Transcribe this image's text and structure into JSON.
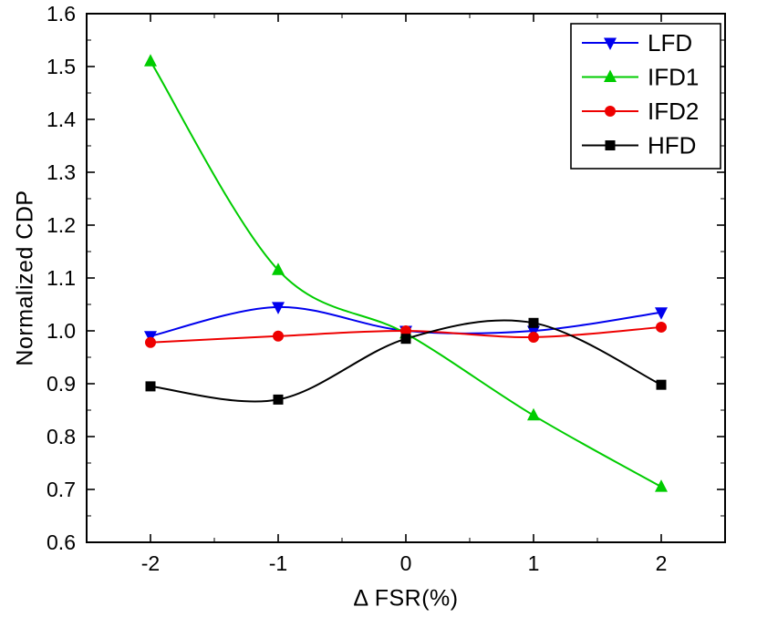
{
  "chart_data": {
    "type": "line",
    "title": "",
    "xlabel": "Δ FSR(%)",
    "ylabel": "Normalized CDP",
    "x": [
      -2,
      -1,
      0,
      1,
      2
    ],
    "series": [
      {
        "name": "LFD",
        "color": "#0000ee",
        "marker": "triangle-down",
        "values": [
          0.99,
          1.045,
          1.0,
          1.0,
          1.035
        ]
      },
      {
        "name": "IFD1",
        "color": "#00cc00",
        "marker": "triangle-up",
        "values": [
          1.51,
          1.115,
          0.995,
          0.84,
          0.705
        ]
      },
      {
        "name": "IFD2",
        "color": "#ee0000",
        "marker": "circle",
        "values": [
          0.978,
          0.99,
          1.0,
          0.988,
          1.007
        ]
      },
      {
        "name": "HFD",
        "color": "#000000",
        "marker": "square",
        "values": [
          0.895,
          0.87,
          0.985,
          1.015,
          0.898
        ]
      }
    ],
    "xlim": [
      -2.5,
      2.5
    ],
    "ylim": [
      0.6,
      1.6
    ],
    "xticks": [
      -2,
      -1,
      0,
      1,
      2
    ],
    "yticks": [
      0.6,
      0.7,
      0.8,
      0.9,
      1.0,
      1.1,
      1.2,
      1.3,
      1.4,
      1.5,
      1.6
    ],
    "x_minor_step": 0.5,
    "y_minor_step": 0.05,
    "grid": false,
    "legend_position": "top-right"
  },
  "colors": {
    "axis": "#000000",
    "background": "#ffffff",
    "tick_label": "#000000"
  }
}
